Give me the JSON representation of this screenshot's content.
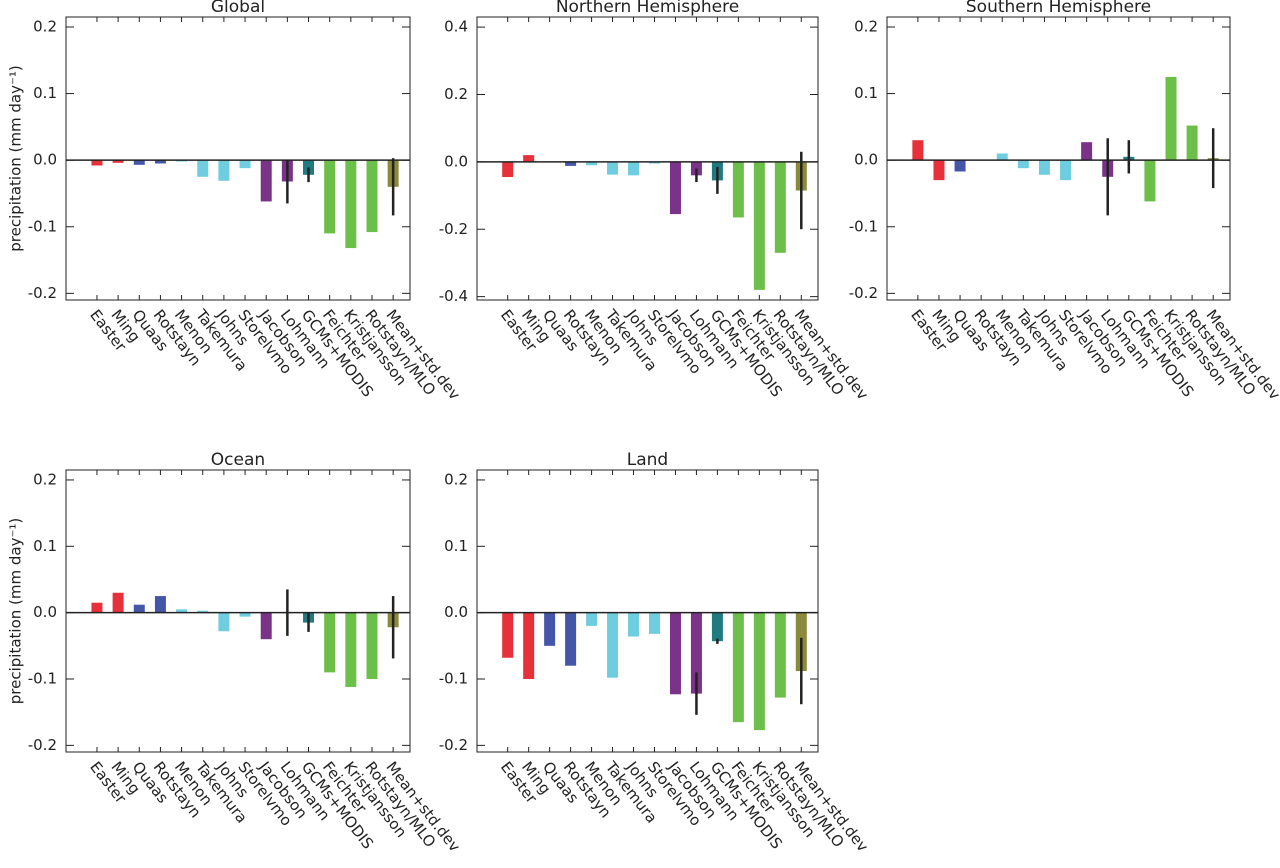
{
  "chart_data": [
    {
      "type": "bar",
      "title": "Global",
      "ylabel": "precipitation (mm day⁻¹)",
      "categories": [
        "Easter",
        "Ming",
        "Quaas",
        "Rotstayn",
        "Menon",
        "Takemura",
        "Johns",
        "Storelvmo",
        "Jacobson",
        "Lohmann",
        "GCMs+MODIS",
        "Feichter",
        "Kristjansson",
        "Rotstayn/MLO",
        "Mean+std.dev"
      ],
      "values": [
        -0.008,
        -0.004,
        -0.007,
        -0.005,
        -0.002,
        -0.025,
        -0.031,
        -0.012,
        -0.062,
        -0.032,
        -0.022,
        -0.11,
        -0.132,
        -0.108,
        -0.04
      ],
      "errors": [
        null,
        null,
        null,
        null,
        null,
        null,
        null,
        null,
        null,
        0.033,
        0.011,
        null,
        null,
        null,
        0.043
      ],
      "colors": [
        "#e8303a",
        "#e8303a",
        "#4456a8",
        "#4456a8",
        "#6fcde0",
        "#6fcde0",
        "#6fcde0",
        "#6fcde0",
        "#7a3388",
        "#7a3388",
        "#1f7b80",
        "#6cc04a",
        "#6cc04a",
        "#6cc04a",
        "#8a8a3a"
      ],
      "error_color": "#222222",
      "ylim": [
        -0.21,
        0.215
      ],
      "yticks": [
        -0.2,
        -0.1,
        {
          "value": 0,
          "label": "0.0"
        },
        0.1,
        0.2
      ]
    },
    {
      "type": "bar",
      "title": "Northern Hemisphere",
      "categories": [
        "Easter",
        "Ming",
        "Quaas",
        "Rotstayn",
        "Menon",
        "Takemura",
        "Johns",
        "Storelvmo",
        "Jacobson",
        "Lohmann",
        "GCMs+MODIS",
        "Feichter",
        "Kristjansson",
        "Rotstayn/MLO",
        "Mean+std.dev"
      ],
      "values": [
        -0.045,
        0.02,
        0.0,
        -0.012,
        -0.01,
        -0.038,
        -0.04,
        -0.005,
        -0.155,
        -0.04,
        -0.055,
        -0.165,
        -0.38,
        -0.27,
        -0.085
      ],
      "errors": [
        null,
        null,
        null,
        null,
        null,
        null,
        null,
        null,
        null,
        0.02,
        0.04,
        null,
        null,
        null,
        0.115
      ],
      "colors": [
        "#e8303a",
        "#e8303a",
        "#4456a8",
        "#4456a8",
        "#6fcde0",
        "#6fcde0",
        "#6fcde0",
        "#6fcde0",
        "#7a3388",
        "#7a3388",
        "#1f7b80",
        "#6cc04a",
        "#6cc04a",
        "#6cc04a",
        "#8a8a3a"
      ],
      "error_color": "#222222",
      "ylim": [
        -0.41,
        0.43
      ],
      "yticks": [
        -0.4,
        -0.2,
        {
          "value": 0,
          "label": "0.0"
        },
        0.2,
        0.4
      ]
    },
    {
      "type": "bar",
      "title": "Southern Hemisphere",
      "categories": [
        "Easter",
        "Ming",
        "Quaas",
        "Rotstayn",
        "Menon",
        "Takemura",
        "Johns",
        "Storelvmo",
        "Jacobson",
        "Lohmann",
        "GCMs+MODIS",
        "Feichter",
        "Kristjansson",
        "Rotstayn/MLO",
        "Mean+std.dev"
      ],
      "values": [
        0.03,
        -0.03,
        -0.017,
        0.001,
        0.01,
        -0.012,
        -0.022,
        -0.03,
        0.027,
        -0.025,
        0.005,
        -0.062,
        0.125,
        0.052,
        0.003
      ],
      "errors": [
        null,
        null,
        null,
        null,
        null,
        null,
        null,
        null,
        null,
        0.058,
        0.025,
        null,
        null,
        null,
        0.045
      ],
      "colors": [
        "#e8303a",
        "#e8303a",
        "#4456a8",
        "#4456a8",
        "#6fcde0",
        "#6fcde0",
        "#6fcde0",
        "#6fcde0",
        "#7a3388",
        "#7a3388",
        "#1f7b80",
        "#6cc04a",
        "#6cc04a",
        "#6cc04a",
        "#8a8a3a"
      ],
      "error_color": "#222222",
      "ylim": [
        -0.21,
        0.215
      ],
      "yticks": [
        -0.2,
        -0.1,
        {
          "value": 0,
          "label": "0.0"
        },
        0.1,
        0.2
      ]
    },
    {
      "type": "bar",
      "title": "Ocean",
      "ylabel": "precipitation (mm day⁻¹)",
      "categories": [
        "Easter",
        "Ming",
        "Quaas",
        "Rotstayn",
        "Menon",
        "Takemura",
        "Johns",
        "Storelvmo",
        "Jacobson",
        "Lohmann",
        "GCMs+MODIS",
        "Feichter",
        "Kristjansson",
        "Rotstayn/MLO",
        "Mean+std.dev"
      ],
      "values": [
        0.015,
        0.03,
        0.012,
        0.025,
        0.005,
        0.003,
        -0.028,
        -0.006,
        -0.04,
        0.0,
        -0.015,
        -0.09,
        -0.112,
        -0.1,
        -0.022
      ],
      "errors": [
        null,
        null,
        null,
        null,
        null,
        null,
        null,
        null,
        null,
        0.035,
        0.014,
        null,
        null,
        null,
        0.047
      ],
      "colors": [
        "#e8303a",
        "#e8303a",
        "#4456a8",
        "#4456a8",
        "#6fcde0",
        "#6fcde0",
        "#6fcde0",
        "#6fcde0",
        "#7a3388",
        "#7a3388",
        "#1f7b80",
        "#6cc04a",
        "#6cc04a",
        "#6cc04a",
        "#8a8a3a"
      ],
      "error_color": "#222222",
      "ylim": [
        -0.21,
        0.215
      ],
      "yticks": [
        -0.2,
        -0.1,
        {
          "value": 0,
          "label": "0.0"
        },
        0.1,
        0.2
      ]
    },
    {
      "type": "bar",
      "title": "Land",
      "categories": [
        "Easter",
        "Ming",
        "Quaas",
        "Rotstayn",
        "Menon",
        "Takemura",
        "Johns",
        "Storelvmo",
        "Jacobson",
        "Lohmann",
        "GCMs+MODIS",
        "Feichter",
        "Kristjansson",
        "Rotstayn/MLO",
        "Mean+std.dev"
      ],
      "values": [
        -0.068,
        -0.1,
        -0.05,
        -0.08,
        -0.02,
        -0.098,
        -0.036,
        -0.032,
        -0.123,
        -0.122,
        -0.043,
        -0.165,
        -0.177,
        -0.128,
        -0.088
      ],
      "errors": [
        null,
        null,
        null,
        null,
        null,
        null,
        null,
        null,
        null,
        0.032,
        0.004,
        null,
        null,
        null,
        0.05
      ],
      "colors": [
        "#e8303a",
        "#e8303a",
        "#4456a8",
        "#4456a8",
        "#6fcde0",
        "#6fcde0",
        "#6fcde0",
        "#6fcde0",
        "#7a3388",
        "#7a3388",
        "#1f7b80",
        "#6cc04a",
        "#6cc04a",
        "#6cc04a",
        "#8a8a3a"
      ],
      "error_color": "#222222",
      "ylim": [
        -0.21,
        0.215
      ],
      "yticks": [
        -0.2,
        -0.1,
        {
          "value": 0,
          "label": "0.0"
        },
        0.1,
        0.2
      ]
    }
  ]
}
